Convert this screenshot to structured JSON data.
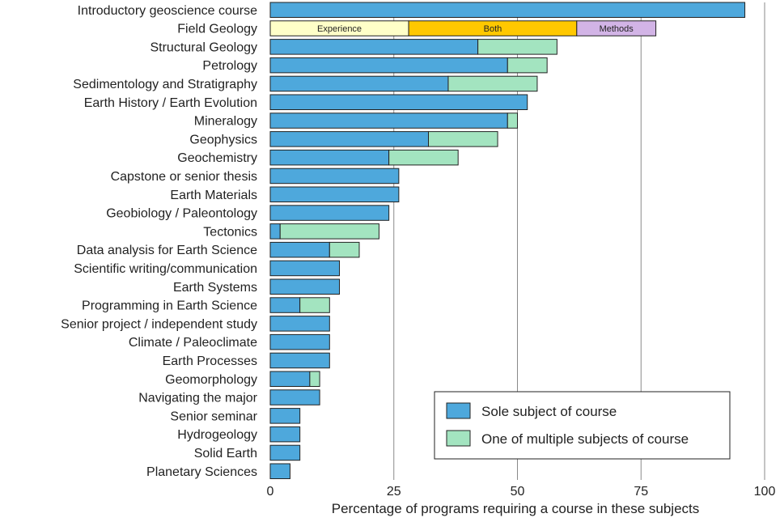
{
  "chart_data": {
    "type": "bar",
    "orientation": "horizontal",
    "stacked": true,
    "title": "",
    "xlabel": "Percentage of programs requiring a course in these subjects",
    "ylabel": "",
    "xlim": [
      0,
      100
    ],
    "xticks": [
      0,
      25,
      50,
      75,
      100
    ],
    "grid": "vertical",
    "legend_position": "bottom-right",
    "categories": [
      "Introductory geoscience course",
      "Field Geology",
      "Structural Geology",
      "Petrology",
      "Sedimentology and Stratigraphy",
      "Earth History / Earth Evolution",
      "Mineralogy",
      "Geophysics",
      "Geochemistry",
      "Capstone or senior thesis",
      "Earth Materials",
      "Geobiology / Paleontology",
      "Tectonics",
      "Data analysis for Earth Science",
      "Scientific writing/communication",
      "Earth Systems",
      "Programming in Earth Science",
      "Senior project / independent study",
      "Climate / Paleoclimate",
      "Earth Processes",
      "Geomorphology",
      "Navigating the major",
      "Senior seminar",
      "Hydrogeology",
      "Solid Earth",
      "Planetary Sciences"
    ],
    "series": [
      {
        "name": "Sole subject of course",
        "color": "#4ea8dc",
        "values": [
          96,
          null,
          42,
          48,
          36,
          52,
          48,
          32,
          24,
          26,
          26,
          24,
          2,
          12,
          14,
          14,
          6,
          12,
          12,
          12,
          8,
          10,
          6,
          6,
          6,
          4
        ]
      },
      {
        "name": "One of multiple subjects of course",
        "color": "#a3e4c0",
        "values": [
          0,
          null,
          16,
          8,
          18,
          0,
          2,
          14,
          14,
          0,
          0,
          0,
          20,
          6,
          0,
          0,
          6,
          0,
          0,
          0,
          2,
          0,
          0,
          0,
          0,
          0
        ]
      }
    ],
    "field_geology_breakdown": [
      {
        "label": "Experience",
        "value": 28,
        "color": "#ffffc8"
      },
      {
        "label": "Both",
        "value": 34,
        "color": "#ffc800"
      },
      {
        "label": "Methods",
        "value": 16,
        "color": "#d2b4e6"
      }
    ]
  }
}
